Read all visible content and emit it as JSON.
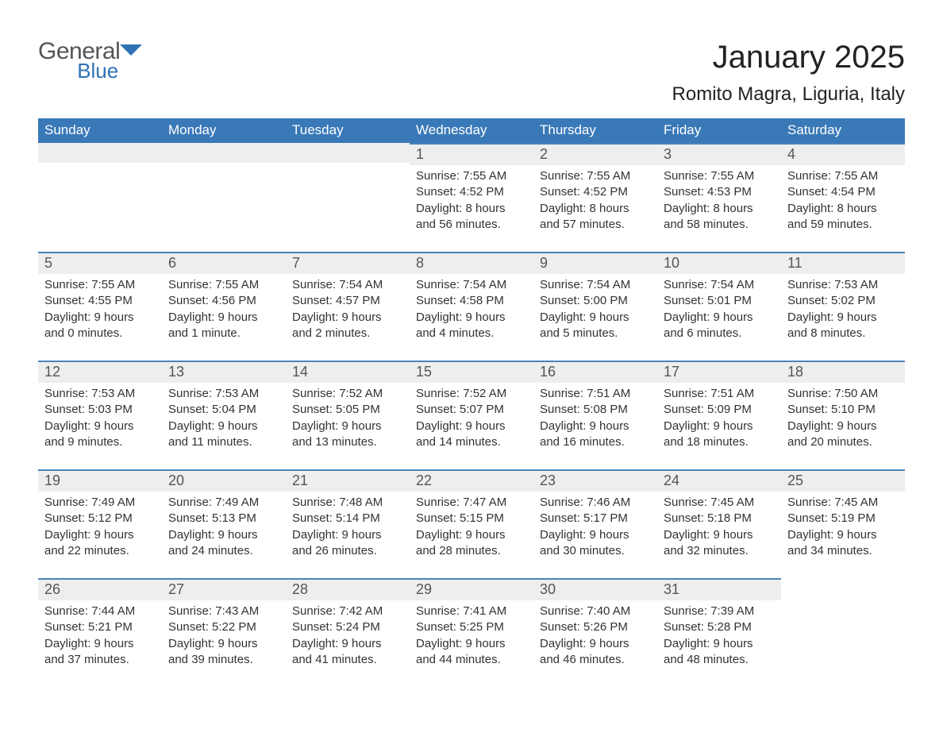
{
  "logo": {
    "general": "General",
    "blue": "Blue",
    "flag_color": "#2f72b6"
  },
  "title": "January 2025",
  "location": "Romito Magra, Liguria, Italy",
  "colors": {
    "header_bg": "#3a79b7",
    "header_text": "#ffffff",
    "daynum_bg": "#eeeeee",
    "daynum_border": "#4a83bb",
    "body_text": "#333333",
    "page_bg": "#ffffff"
  },
  "weekdays": [
    "Sunday",
    "Monday",
    "Tuesday",
    "Wednesday",
    "Thursday",
    "Friday",
    "Saturday"
  ],
  "weeks": [
    [
      {
        "empty": true
      },
      {
        "empty": true
      },
      {
        "empty": true
      },
      {
        "day": "1",
        "sunrise": "Sunrise: 7:55 AM",
        "sunset": "Sunset: 4:52 PM",
        "dl1": "Daylight: 8 hours",
        "dl2": "and 56 minutes."
      },
      {
        "day": "2",
        "sunrise": "Sunrise: 7:55 AM",
        "sunset": "Sunset: 4:52 PM",
        "dl1": "Daylight: 8 hours",
        "dl2": "and 57 minutes."
      },
      {
        "day": "3",
        "sunrise": "Sunrise: 7:55 AM",
        "sunset": "Sunset: 4:53 PM",
        "dl1": "Daylight: 8 hours",
        "dl2": "and 58 minutes."
      },
      {
        "day": "4",
        "sunrise": "Sunrise: 7:55 AM",
        "sunset": "Sunset: 4:54 PM",
        "dl1": "Daylight: 8 hours",
        "dl2": "and 59 minutes."
      }
    ],
    [
      {
        "day": "5",
        "sunrise": "Sunrise: 7:55 AM",
        "sunset": "Sunset: 4:55 PM",
        "dl1": "Daylight: 9 hours",
        "dl2": "and 0 minutes."
      },
      {
        "day": "6",
        "sunrise": "Sunrise: 7:55 AM",
        "sunset": "Sunset: 4:56 PM",
        "dl1": "Daylight: 9 hours",
        "dl2": "and 1 minute."
      },
      {
        "day": "7",
        "sunrise": "Sunrise: 7:54 AM",
        "sunset": "Sunset: 4:57 PM",
        "dl1": "Daylight: 9 hours",
        "dl2": "and 2 minutes."
      },
      {
        "day": "8",
        "sunrise": "Sunrise: 7:54 AM",
        "sunset": "Sunset: 4:58 PM",
        "dl1": "Daylight: 9 hours",
        "dl2": "and 4 minutes."
      },
      {
        "day": "9",
        "sunrise": "Sunrise: 7:54 AM",
        "sunset": "Sunset: 5:00 PM",
        "dl1": "Daylight: 9 hours",
        "dl2": "and 5 minutes."
      },
      {
        "day": "10",
        "sunrise": "Sunrise: 7:54 AM",
        "sunset": "Sunset: 5:01 PM",
        "dl1": "Daylight: 9 hours",
        "dl2": "and 6 minutes."
      },
      {
        "day": "11",
        "sunrise": "Sunrise: 7:53 AM",
        "sunset": "Sunset: 5:02 PM",
        "dl1": "Daylight: 9 hours",
        "dl2": "and 8 minutes."
      }
    ],
    [
      {
        "day": "12",
        "sunrise": "Sunrise: 7:53 AM",
        "sunset": "Sunset: 5:03 PM",
        "dl1": "Daylight: 9 hours",
        "dl2": "and 9 minutes."
      },
      {
        "day": "13",
        "sunrise": "Sunrise: 7:53 AM",
        "sunset": "Sunset: 5:04 PM",
        "dl1": "Daylight: 9 hours",
        "dl2": "and 11 minutes."
      },
      {
        "day": "14",
        "sunrise": "Sunrise: 7:52 AM",
        "sunset": "Sunset: 5:05 PM",
        "dl1": "Daylight: 9 hours",
        "dl2": "and 13 minutes."
      },
      {
        "day": "15",
        "sunrise": "Sunrise: 7:52 AM",
        "sunset": "Sunset: 5:07 PM",
        "dl1": "Daylight: 9 hours",
        "dl2": "and 14 minutes."
      },
      {
        "day": "16",
        "sunrise": "Sunrise: 7:51 AM",
        "sunset": "Sunset: 5:08 PM",
        "dl1": "Daylight: 9 hours",
        "dl2": "and 16 minutes."
      },
      {
        "day": "17",
        "sunrise": "Sunrise: 7:51 AM",
        "sunset": "Sunset: 5:09 PM",
        "dl1": "Daylight: 9 hours",
        "dl2": "and 18 minutes."
      },
      {
        "day": "18",
        "sunrise": "Sunrise: 7:50 AM",
        "sunset": "Sunset: 5:10 PM",
        "dl1": "Daylight: 9 hours",
        "dl2": "and 20 minutes."
      }
    ],
    [
      {
        "day": "19",
        "sunrise": "Sunrise: 7:49 AM",
        "sunset": "Sunset: 5:12 PM",
        "dl1": "Daylight: 9 hours",
        "dl2": "and 22 minutes."
      },
      {
        "day": "20",
        "sunrise": "Sunrise: 7:49 AM",
        "sunset": "Sunset: 5:13 PM",
        "dl1": "Daylight: 9 hours",
        "dl2": "and 24 minutes."
      },
      {
        "day": "21",
        "sunrise": "Sunrise: 7:48 AM",
        "sunset": "Sunset: 5:14 PM",
        "dl1": "Daylight: 9 hours",
        "dl2": "and 26 minutes."
      },
      {
        "day": "22",
        "sunrise": "Sunrise: 7:47 AM",
        "sunset": "Sunset: 5:15 PM",
        "dl1": "Daylight: 9 hours",
        "dl2": "and 28 minutes."
      },
      {
        "day": "23",
        "sunrise": "Sunrise: 7:46 AM",
        "sunset": "Sunset: 5:17 PM",
        "dl1": "Daylight: 9 hours",
        "dl2": "and 30 minutes."
      },
      {
        "day": "24",
        "sunrise": "Sunrise: 7:45 AM",
        "sunset": "Sunset: 5:18 PM",
        "dl1": "Daylight: 9 hours",
        "dl2": "and 32 minutes."
      },
      {
        "day": "25",
        "sunrise": "Sunrise: 7:45 AM",
        "sunset": "Sunset: 5:19 PM",
        "dl1": "Daylight: 9 hours",
        "dl2": "and 34 minutes."
      }
    ],
    [
      {
        "day": "26",
        "sunrise": "Sunrise: 7:44 AM",
        "sunset": "Sunset: 5:21 PM",
        "dl1": "Daylight: 9 hours",
        "dl2": "and 37 minutes."
      },
      {
        "day": "27",
        "sunrise": "Sunrise: 7:43 AM",
        "sunset": "Sunset: 5:22 PM",
        "dl1": "Daylight: 9 hours",
        "dl2": "and 39 minutes."
      },
      {
        "day": "28",
        "sunrise": "Sunrise: 7:42 AM",
        "sunset": "Sunset: 5:24 PM",
        "dl1": "Daylight: 9 hours",
        "dl2": "and 41 minutes."
      },
      {
        "day": "29",
        "sunrise": "Sunrise: 7:41 AM",
        "sunset": "Sunset: 5:25 PM",
        "dl1": "Daylight: 9 hours",
        "dl2": "and 44 minutes."
      },
      {
        "day": "30",
        "sunrise": "Sunrise: 7:40 AM",
        "sunset": "Sunset: 5:26 PM",
        "dl1": "Daylight: 9 hours",
        "dl2": "and 46 minutes."
      },
      {
        "day": "31",
        "sunrise": "Sunrise: 7:39 AM",
        "sunset": "Sunset: 5:28 PM",
        "dl1": "Daylight: 9 hours",
        "dl2": "and 48 minutes."
      },
      {
        "trailing_empty": true
      }
    ]
  ]
}
